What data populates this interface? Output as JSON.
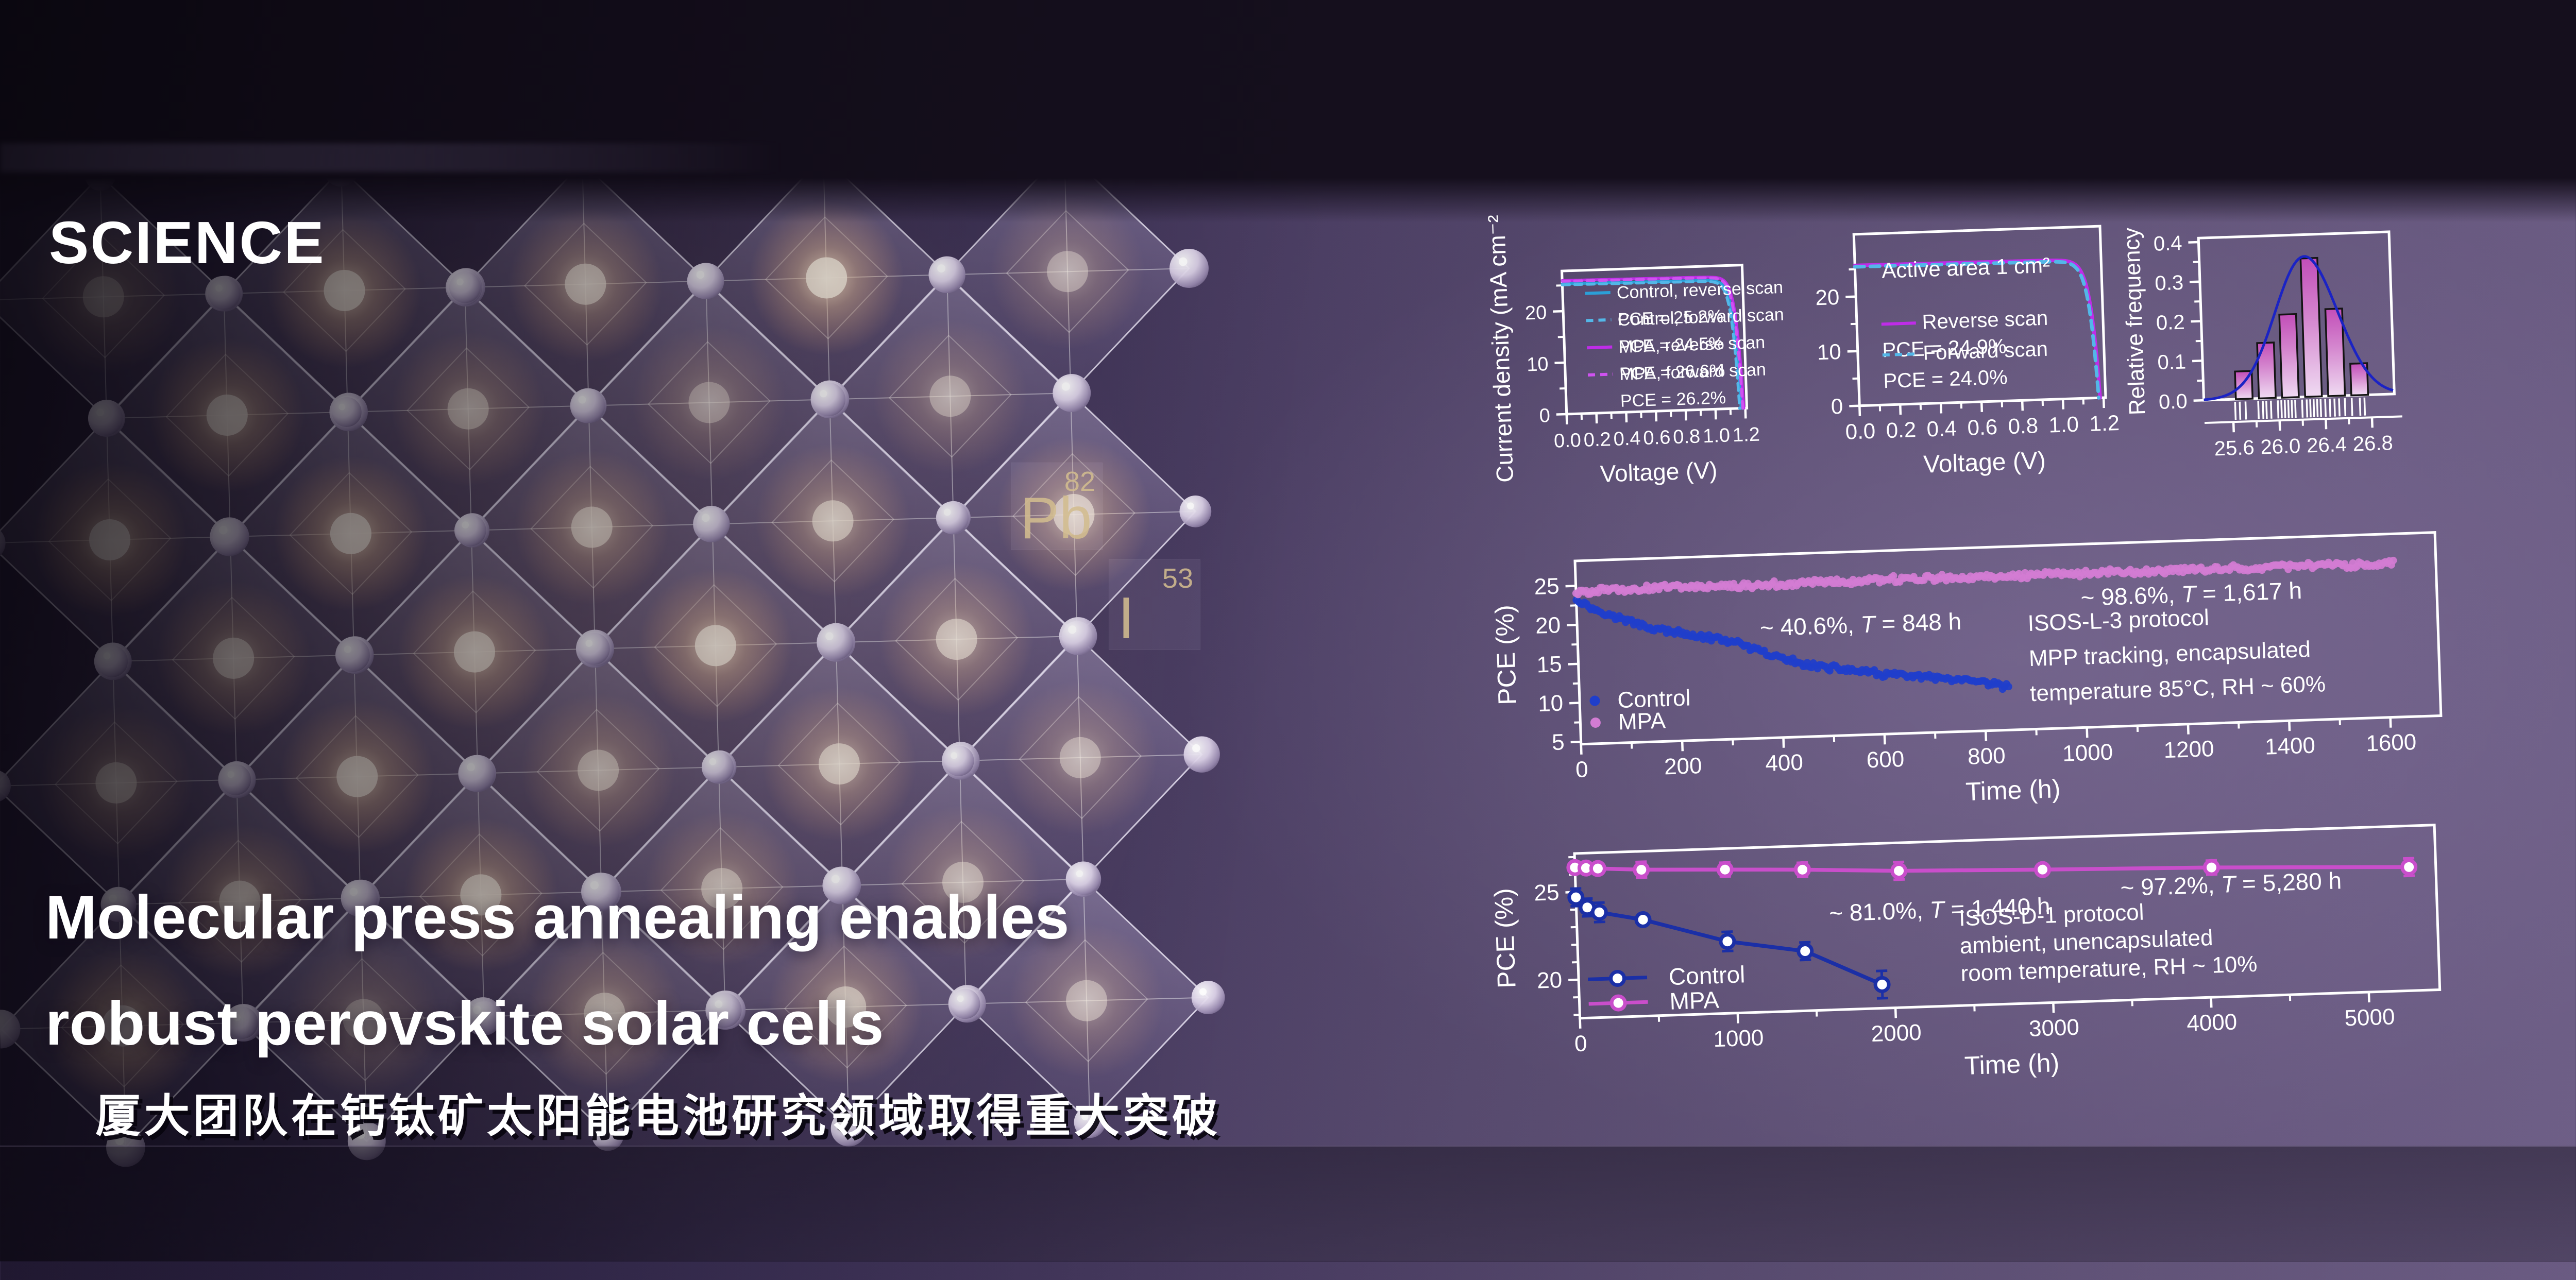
{
  "branding": {
    "journal_logo": "SCIENCE"
  },
  "hero": {
    "title_line1": "Molecular press annealing enables",
    "title_line2": "robust perovskite solar cells",
    "subtitle_zh": "厦大团队在钙钛矿太阳能电池研究领域取得重大突破"
  },
  "periodic_tiles": [
    {
      "symbol": "Pb",
      "atomic_number": "82"
    },
    {
      "symbol": "I",
      "atomic_number": "53"
    }
  ],
  "colors": {
    "axis": "#ffffff",
    "control_blue": "#2b9fd8",
    "control_blue_dash": "#53b7e8",
    "mpa_magenta": "#bf2ce8",
    "mpa_magenta_dash": "#cf52f0",
    "scatter_control": "#1f3ecb",
    "scatter_mpa": "#d27cd3",
    "line_control": "#1b2fa6",
    "line_mpa": "#c94ecb",
    "hist_bar_top": "#c24eb8",
    "hist_bar_mid": "#d internally"
  },
  "chart_data": [
    {
      "id": "jv-control-mpa",
      "type": "line",
      "xlabel": "Voltage (V)",
      "ylabel": "Current density (mA cm⁻²)",
      "xlim": [
        0,
        1.21
      ],
      "ylim": [
        0,
        27.8
      ],
      "xticks": [
        0.0,
        0.2,
        0.4,
        0.6,
        0.8,
        1.0,
        1.2
      ],
      "xminor": [
        0.1,
        0.3,
        0.5,
        0.7,
        0.9,
        1.1
      ],
      "yticks": [
        0,
        10,
        20
      ],
      "yminor": [
        5,
        15,
        25
      ],
      "series": [
        {
          "label": "Control, reverse scan",
          "pce_label": "PCE = 25.2%",
          "color": "#2b9fd8",
          "dashed": false,
          "jsc": 25.3,
          "voc": 1.172
        },
        {
          "label": "Control, forward scan",
          "pce_label": "PCE = 24.5%",
          "color": "#53b7e8",
          "dashed": true,
          "jsc": 25.1,
          "voc": 1.162
        },
        {
          "label": "MPA, reverse scan",
          "pce_label": "PCE = 26.6%",
          "color": "#bf2ce8",
          "dashed": false,
          "jsc": 25.95,
          "voc": 1.19
        },
        {
          "label": "MPA, forward scan",
          "pce_label": "PCE = 26.2%",
          "color": "#cf52f0",
          "dashed": true,
          "jsc": 25.8,
          "voc": 1.183
        }
      ]
    },
    {
      "id": "jv-active-area",
      "type": "line",
      "note": "Active area 1 cm²",
      "xlabel": "Voltage (V)",
      "ylabel": "",
      "xlim": [
        0,
        1.21
      ],
      "ylim": [
        0,
        31.4
      ],
      "xticks": [
        0.0,
        0.2,
        0.4,
        0.6,
        0.8,
        1.0,
        1.2
      ],
      "xminor": [
        0.1,
        0.3,
        0.5,
        0.7,
        0.9,
        1.1
      ],
      "yticks": [
        0,
        10,
        20
      ],
      "yminor": [
        5,
        15,
        25
      ],
      "series": [
        {
          "label": "Reverse scan",
          "pce_label": "PCE = 24.9%",
          "color": "#bf2ce8",
          "dashed": false,
          "jsc": 25.7,
          "voc": 1.183
        },
        {
          "label": "Forward scan",
          "pce_label": "PCE = 24.0%",
          "color": "#53b7e8",
          "dashed": true,
          "jsc": 25.45,
          "voc": 1.176
        }
      ]
    },
    {
      "id": "pce-histogram",
      "type": "bar",
      "ylabel": "Relative frequency",
      "xlim": [
        25.35,
        27.0
      ],
      "ylim": [
        0,
        0.41
      ],
      "xticks": [
        25.6,
        26.0,
        26.4,
        26.8
      ],
      "xminor": [
        25.8,
        26.2,
        26.6
      ],
      "yticks": [
        0.0,
        0.1,
        0.2,
        0.3,
        0.4
      ],
      "yminor": [
        0.05,
        0.15,
        0.25,
        0.35
      ],
      "bin_centers": [
        25.7,
        25.9,
        26.1,
        26.3,
        26.5,
        26.7
      ],
      "bin_width": 0.145,
      "frequencies": [
        0.07,
        0.14,
        0.21,
        0.35,
        0.22,
        0.08
      ],
      "fit_curve": {
        "mean": 26.26,
        "sigma": 0.27,
        "peak": 0.355
      },
      "rug_values": [
        25.62,
        25.66,
        25.71,
        25.82,
        25.86,
        25.89,
        25.93,
        25.99,
        26.02,
        26.05,
        26.08,
        26.11,
        26.14,
        26.2,
        26.24,
        26.27,
        26.3,
        26.33,
        26.36,
        26.4,
        26.44,
        26.48,
        26.52,
        26.57,
        26.63,
        26.7,
        26.74
      ],
      "bar_fill_top": "#c24eb8",
      "bar_fill_mid": "#d588cf",
      "bar_fill_bottom": "#efdaf2",
      "curve_color": "#1b23c4"
    },
    {
      "id": "stability-mpp",
      "type": "scatter",
      "xlabel": "Time (h)",
      "ylabel": "PCE (%)",
      "xlim": [
        0,
        1700
      ],
      "ylim": [
        4.7,
        28.2
      ],
      "xticks": [
        0,
        200,
        400,
        600,
        800,
        1000,
        1200,
        1400,
        1600
      ],
      "xminor": [
        100,
        300,
        500,
        700,
        900,
        1100,
        1300,
        1500
      ],
      "yticks": [
        5,
        10,
        15,
        20,
        25
      ],
      "yminor": [
        7.5,
        12.5,
        17.5,
        22.5
      ],
      "series": [
        {
          "name": "Control",
          "color": "#1f3ecb",
          "marker_r": 7.2,
          "step": 4,
          "jitter": 0.45,
          "trend": [
            [
              0,
              23.3
            ],
            [
              30,
              22.1
            ],
            [
              60,
              21.2
            ],
            [
              100,
              20.3
            ],
            [
              150,
              19.2
            ],
            [
              200,
              18.5
            ],
            [
              250,
              17.9
            ],
            [
              300,
              17.3
            ],
            [
              340,
              16.3
            ],
            [
              380,
              15.3
            ],
            [
              430,
              14.3
            ],
            [
              480,
              13.6
            ],
            [
              540,
              13.0
            ],
            [
              600,
              12.4
            ],
            [
              660,
              12.0
            ],
            [
              720,
              11.5
            ],
            [
              780,
              11.0
            ],
            [
              820,
              10.6
            ],
            [
              848,
              10.2
            ]
          ]
        },
        {
          "name": "MPA",
          "color": "#d27cd3",
          "marker_r": 7.2,
          "step": 4,
          "jitter": 0.5,
          "trend": [
            [
              0,
              24.2
            ],
            [
              150,
              24.4
            ],
            [
              350,
              24.35
            ],
            [
              600,
              24.45
            ],
            [
              850,
              24.4
            ],
            [
              1100,
              24.5
            ],
            [
              1350,
              24.45
            ],
            [
              1617,
              24.4
            ]
          ]
        }
      ],
      "annotations": [
        {
          "text": "~ 40.6%, T = 848 h",
          "x": 560,
          "y": 17.8,
          "anchor": "middle"
        },
        {
          "text": "~ 98.6%, T = 1,617 h",
          "x": 1215,
          "y": 20.3,
          "anchor": "middle"
        }
      ],
      "note_lines": [
        "ISOS-L-3 protocol",
        "MPP tracking, encapsulated",
        "temperature 85°C, RH ~ 60%"
      ],
      "note_pos": {
        "x": 890,
        "y": 17.3,
        "line_step": 4.5
      },
      "legend": {
        "x": 30,
        "ys": [
          10.2,
          7.4
        ],
        "entries": [
          "Control",
          "MPA"
        ]
      }
    },
    {
      "id": "stability-shelf",
      "type": "line",
      "xlabel": "Time (h)",
      "ylabel": "PCE (%)",
      "xlim": [
        0,
        5450
      ],
      "ylim": [
        17.8,
        27.2
      ],
      "xticks": [
        0,
        1000,
        2000,
        3000,
        4000,
        5000
      ],
      "xminor": [
        500,
        1500,
        2500,
        3500,
        4500
      ],
      "yticks": [
        20,
        25
      ],
      "yminor": [
        18,
        19,
        21,
        22,
        23,
        24,
        26,
        27
      ],
      "series": [
        {
          "name": "Control",
          "color": "#1b2fa6",
          "points": [
            [
              0,
              24.7,
              0.5
            ],
            [
              70,
              24.1,
              0.5
            ],
            [
              145,
              23.8,
              0.55
            ],
            [
              420,
              23.3,
              0.3
            ],
            [
              950,
              21.9,
              0.55
            ],
            [
              1440,
              21.2,
              0.5
            ],
            [
              1920,
              19.15,
              0.78
            ]
          ]
        },
        {
          "name": "MPA",
          "color": "#c94ecb",
          "points": [
            [
              0,
              26.4,
              0.12
            ],
            [
              70,
              26.35,
              0.12
            ],
            [
              145,
              26.3,
              0.3
            ],
            [
              420,
              26.15,
              0.45
            ],
            [
              950,
              26.0,
              0.4
            ],
            [
              1440,
              25.85,
              0.4
            ],
            [
              2050,
              25.6,
              0.5
            ],
            [
              2960,
              25.4,
              0.3
            ],
            [
              4030,
              25.2,
              0.4
            ],
            [
              5280,
              24.85,
              0.5
            ]
          ]
        }
      ],
      "annotations": [
        {
          "text": "~ 81.0%, T = 1,440 h",
          "x": 2300,
          "y": 22.85,
          "anchor": "middle"
        },
        {
          "text": "~ 97.2%, T = 5,280 h",
          "x": 4150,
          "y": 23.75,
          "anchor": "middle"
        }
      ],
      "note_lines": [
        "ISOS-D-1 protocol",
        "ambient, unencapsulated",
        "room temperature, RH ~ 10%"
      ],
      "note_pos": {
        "x": 2420,
        "y": 22.35,
        "line_step": 1.58
      },
      "legend": {
        "ys": [
          20.0,
          18.6
        ],
        "entries": [
          "Control",
          "MPA"
        ]
      }
    }
  ]
}
